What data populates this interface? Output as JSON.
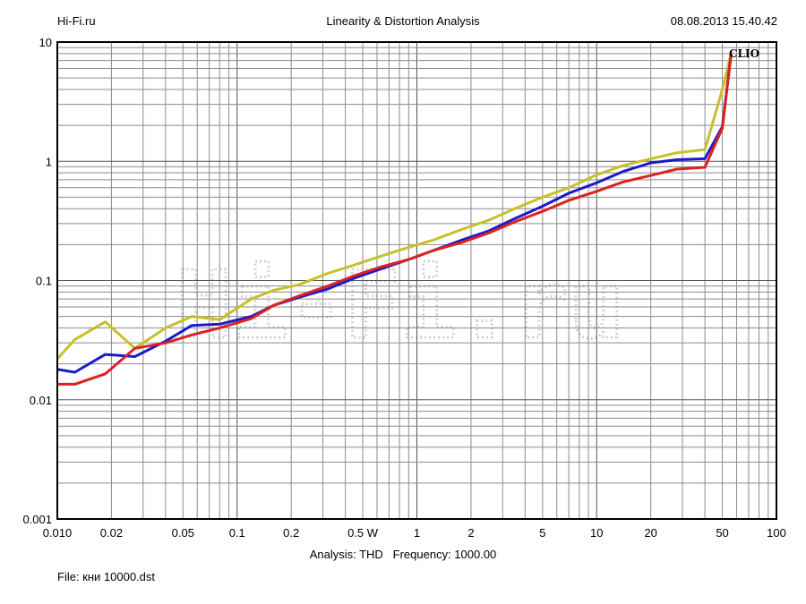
{
  "header": {
    "left": "Hi-Fi.ru",
    "center": "Linearity & Distortion Analysis",
    "right": "08.08.2013 15.40.42"
  },
  "footer": {
    "analysis_label": "Analysis: THD",
    "frequency_label": "Frequency: 1000.00",
    "file_label": "File: кни 10000.dst"
  },
  "brand": "CLIO",
  "watermark": "Hi-Fi.ru",
  "chart_data": {
    "type": "line",
    "title": "Linearity & Distortion Analysis",
    "xscale": "log",
    "yscale": "log",
    "xlim": [
      0.01,
      100
    ],
    "ylim": [
      0.001,
      10
    ],
    "grid": true,
    "x_ticks": [
      "0.010",
      "0.02",
      "0.05",
      "0.1",
      "0.2",
      "0.5 W",
      "1",
      "2",
      "5",
      "10",
      "20",
      "50",
      "100"
    ],
    "x_tick_values": [
      0.01,
      0.02,
      0.05,
      0.1,
      0.2,
      0.5,
      1,
      2,
      5,
      10,
      20,
      50,
      100
    ],
    "y_ticks": [
      "10",
      "1",
      "0.1",
      "0.01",
      "0.001"
    ],
    "y_tick_values": [
      10,
      1,
      0.1,
      0.01,
      0.001
    ],
    "series": [
      {
        "color": "#c8c02a",
        "x": [
          0.01,
          0.0125,
          0.0185,
          0.027,
          0.04,
          0.056,
          0.08,
          0.12,
          0.16,
          0.22,
          0.32,
          0.45,
          0.63,
          0.9,
          1.25,
          1.8,
          2.5,
          3.5,
          5,
          7,
          10,
          14,
          20,
          28,
          40,
          50,
          56
        ],
        "y": [
          0.022,
          0.032,
          0.045,
          0.027,
          0.04,
          0.05,
          0.047,
          0.07,
          0.083,
          0.092,
          0.115,
          0.135,
          0.16,
          0.19,
          0.22,
          0.27,
          0.32,
          0.4,
          0.5,
          0.6,
          0.77,
          0.92,
          1.05,
          1.18,
          1.25,
          4,
          8
        ]
      },
      {
        "color": "#1a1acc",
        "x": [
          0.01,
          0.0125,
          0.0185,
          0.027,
          0.04,
          0.056,
          0.08,
          0.12,
          0.16,
          0.22,
          0.32,
          0.45,
          0.63,
          0.9,
          1.25,
          1.8,
          2.5,
          3.5,
          5,
          7,
          10,
          14,
          20,
          28,
          40,
          50,
          56
        ],
        "y": [
          0.018,
          0.017,
          0.024,
          0.023,
          0.031,
          0.042,
          0.043,
          0.05,
          0.062,
          0.072,
          0.085,
          0.105,
          0.125,
          0.15,
          0.18,
          0.22,
          0.26,
          0.33,
          0.42,
          0.54,
          0.66,
          0.82,
          0.97,
          1.03,
          1.05,
          1.95,
          8
        ]
      },
      {
        "color": "#dd2020",
        "x": [
          0.01,
          0.0125,
          0.0185,
          0.027,
          0.04,
          0.056,
          0.08,
          0.12,
          0.16,
          0.22,
          0.32,
          0.45,
          0.63,
          0.9,
          1.25,
          1.8,
          2.5,
          3.5,
          5,
          7,
          10,
          14,
          20,
          28,
          40,
          50,
          56
        ],
        "y": [
          0.0135,
          0.0135,
          0.0165,
          0.027,
          0.03,
          0.035,
          0.04,
          0.048,
          0.062,
          0.074,
          0.09,
          0.11,
          0.13,
          0.15,
          0.18,
          0.21,
          0.25,
          0.31,
          0.38,
          0.47,
          0.56,
          0.67,
          0.76,
          0.86,
          0.89,
          1.9,
          8
        ]
      }
    ]
  }
}
